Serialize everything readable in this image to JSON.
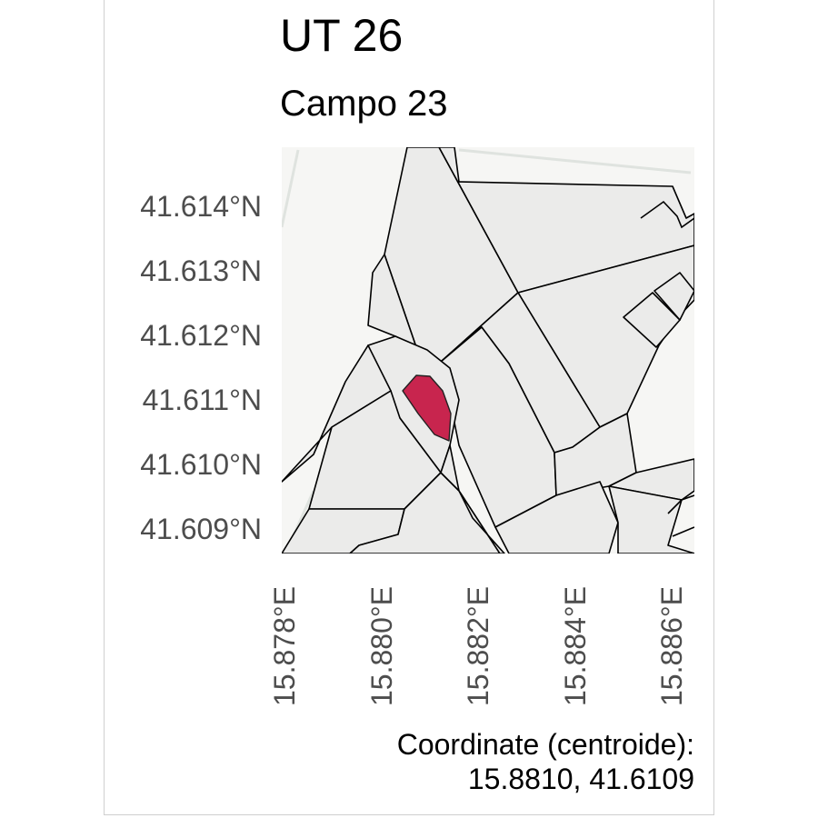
{
  "title": "UT 26",
  "subtitle": "Campo 23",
  "axes": {
    "y_ticks": [
      "41.614°N",
      "41.613°N",
      "41.612°N",
      "41.611°N",
      "41.610°N",
      "41.609°N"
    ],
    "x_ticks": [
      "15.878°E",
      "15.880°E",
      "15.882°E",
      "15.884°E",
      "15.886°E"
    ]
  },
  "caption": {
    "line1": "Coordinate (centroide):",
    "line2": "15.8810, 41.6109"
  },
  "colors": {
    "highlight": "#c8254e",
    "parcel_fill": "#ebebea",
    "outline": "#000000"
  }
}
